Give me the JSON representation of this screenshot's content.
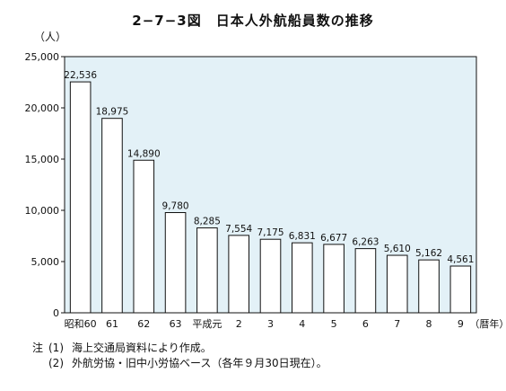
{
  "chart_data": {
    "type": "bar",
    "title": "2−7−3図　日本人外航船員数の推移",
    "ylabel": "（人）",
    "xlabel": "（暦年）",
    "categories": [
      "昭和60",
      "61",
      "62",
      "63",
      "平成元",
      "2",
      "3",
      "4",
      "5",
      "6",
      "7",
      "8",
      "9"
    ],
    "values": [
      22536,
      18975,
      14890,
      9780,
      8285,
      7554,
      7175,
      6831,
      6677,
      6263,
      5610,
      5162,
      4561
    ],
    "value_labels": [
      "22,536",
      "18,975",
      "14,890",
      "9,780",
      "8,285",
      "7,554",
      "7,175",
      "6,831",
      "6,677",
      "6,263",
      "5,610",
      "5,162",
      "4,561"
    ],
    "ylim": [
      0,
      25000
    ],
    "yticks": [
      0,
      5000,
      10000,
      15000,
      20000,
      25000
    ],
    "ytick_labels": [
      "0",
      "5,000",
      "10,000",
      "15,000",
      "20,000",
      "25,000"
    ],
    "grid": false,
    "plot_background": "#e3f1f7",
    "bar_color": "#ffffff",
    "bar_edge_color": "#111111"
  },
  "notes": {
    "label": "注",
    "items": [
      {
        "num": "(1)",
        "text": "海上交通局資料により作成。"
      },
      {
        "num": "(2)",
        "text": "外航労協・旧中小労協ベース（各年９月30日現在）。"
      }
    ]
  }
}
